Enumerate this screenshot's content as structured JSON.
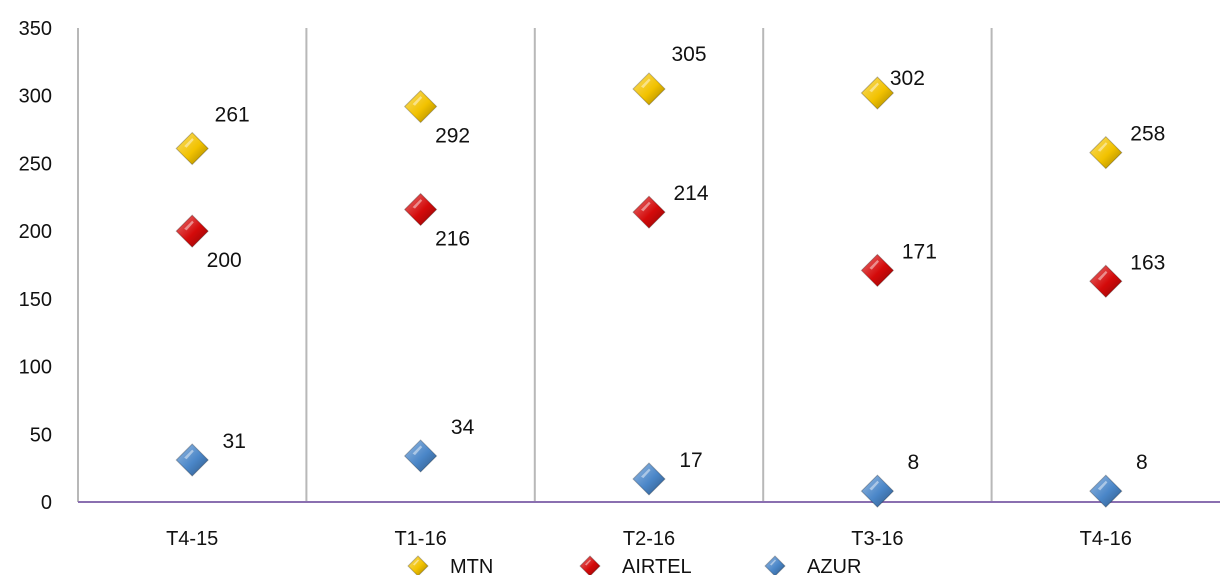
{
  "chart_data": {
    "type": "scatter",
    "categories": [
      "T4-15",
      "T1-16",
      "T2-16",
      "T3-16",
      "T4-16"
    ],
    "series": [
      {
        "name": "MTN",
        "values": [
          261,
          292,
          305,
          302,
          258
        ],
        "color": "#f2c200",
        "labels": [
          "261",
          "292",
          "305",
          "302",
          "258"
        ]
      },
      {
        "name": "AIRTEL",
        "values": [
          200,
          216,
          214,
          171,
          163
        ],
        "color": "#d40a0a",
        "labels": [
          "200",
          "216",
          "214",
          "171",
          "163"
        ]
      },
      {
        "name": "AZUR",
        "values": [
          31,
          34,
          17,
          8,
          8
        ],
        "color": "#4a86c8",
        "labels": [
          "31",
          "34",
          "17",
          "8",
          "8"
        ]
      }
    ],
    "yticks": [
      "0",
      "50",
      "100",
      "150",
      "200",
      "250",
      "300",
      "350"
    ],
    "ylim": [
      0,
      350
    ],
    "grid": "vertical separators between categories",
    "legend_position": "bottom",
    "marker": "diamond"
  }
}
